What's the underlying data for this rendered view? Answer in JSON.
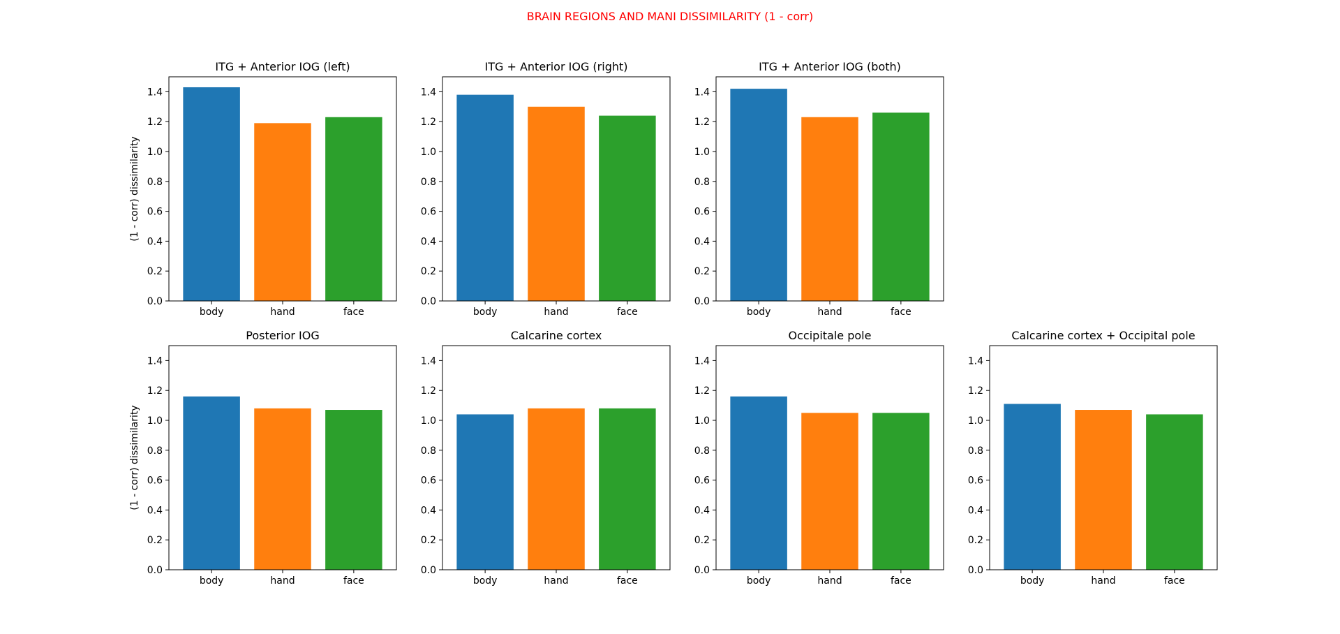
{
  "figure": {
    "suptitle": "BRAIN REGIONS AND MANI DISSIMILARITY (1 - corr)",
    "suptitle_color": "#ff0000"
  },
  "chart_data": [
    {
      "type": "bar",
      "title": "ITG + Anterior IOG (left)",
      "categories": [
        "body",
        "hand",
        "face"
      ],
      "values": [
        1.43,
        1.19,
        1.23
      ],
      "colors": [
        "#1f77b4",
        "#ff7f0e",
        "#2ca02c"
      ],
      "ylabel": "(1 - corr) dissimilarity",
      "ylim": [
        0,
        1.5
      ],
      "yticks": [
        "0.0",
        "0.2",
        "0.4",
        "0.6",
        "0.8",
        "1.0",
        "1.2",
        "1.4"
      ]
    },
    {
      "type": "bar",
      "title": "ITG + Anterior IOG (right)",
      "categories": [
        "body",
        "hand",
        "face"
      ],
      "values": [
        1.38,
        1.3,
        1.24
      ],
      "colors": [
        "#1f77b4",
        "#ff7f0e",
        "#2ca02c"
      ],
      "ylabel": "",
      "ylim": [
        0,
        1.5
      ],
      "yticks": [
        "0.0",
        "0.2",
        "0.4",
        "0.6",
        "0.8",
        "1.0",
        "1.2",
        "1.4"
      ]
    },
    {
      "type": "bar",
      "title": "ITG + Anterior IOG (both)",
      "categories": [
        "body",
        "hand",
        "face"
      ],
      "values": [
        1.42,
        1.23,
        1.26
      ],
      "colors": [
        "#1f77b4",
        "#ff7f0e",
        "#2ca02c"
      ],
      "ylabel": "",
      "ylim": [
        0,
        1.5
      ],
      "yticks": [
        "0.0",
        "0.2",
        "0.4",
        "0.6",
        "0.8",
        "1.0",
        "1.2",
        "1.4"
      ]
    },
    {
      "type": "bar",
      "title": "Posterior IOG",
      "categories": [
        "body",
        "hand",
        "face"
      ],
      "values": [
        1.16,
        1.08,
        1.07
      ],
      "colors": [
        "#1f77b4",
        "#ff7f0e",
        "#2ca02c"
      ],
      "ylabel": "(1 - corr) dissimilarity",
      "ylim": [
        0,
        1.5
      ],
      "yticks": [
        "0.0",
        "0.2",
        "0.4",
        "0.6",
        "0.8",
        "1.0",
        "1.2",
        "1.4"
      ]
    },
    {
      "type": "bar",
      "title": "Calcarine cortex",
      "categories": [
        "body",
        "hand",
        "face"
      ],
      "values": [
        1.04,
        1.08,
        1.08
      ],
      "colors": [
        "#1f77b4",
        "#ff7f0e",
        "#2ca02c"
      ],
      "ylabel": "",
      "ylim": [
        0,
        1.5
      ],
      "yticks": [
        "0.0",
        "0.2",
        "0.4",
        "0.6",
        "0.8",
        "1.0",
        "1.2",
        "1.4"
      ]
    },
    {
      "type": "bar",
      "title": "Occipitale pole",
      "categories": [
        "body",
        "hand",
        "face"
      ],
      "values": [
        1.16,
        1.05,
        1.05
      ],
      "colors": [
        "#1f77b4",
        "#ff7f0e",
        "#2ca02c"
      ],
      "ylabel": "",
      "ylim": [
        0,
        1.5
      ],
      "yticks": [
        "0.0",
        "0.2",
        "0.4",
        "0.6",
        "0.8",
        "1.0",
        "1.2",
        "1.4"
      ]
    },
    {
      "type": "bar",
      "title": "Calcarine cortex + Occipital pole",
      "categories": [
        "body",
        "hand",
        "face"
      ],
      "values": [
        1.11,
        1.07,
        1.04
      ],
      "colors": [
        "#1f77b4",
        "#ff7f0e",
        "#2ca02c"
      ],
      "ylabel": "",
      "ylim": [
        0,
        1.5
      ],
      "yticks": [
        "0.0",
        "0.2",
        "0.4",
        "0.6",
        "0.8",
        "1.0",
        "1.2",
        "1.4"
      ]
    }
  ]
}
